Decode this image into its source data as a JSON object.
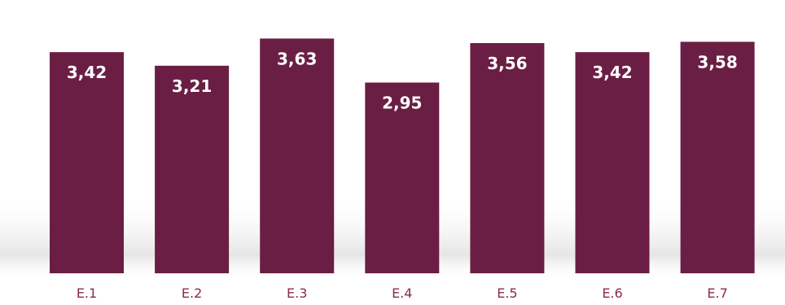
{
  "chart_data": {
    "type": "bar",
    "categories": [
      "E.1",
      "E.2",
      "E.3",
      "E.4",
      "E.5",
      "E.6",
      "E.7"
    ],
    "values": [
      3.42,
      3.21,
      3.63,
      2.95,
      3.56,
      3.42,
      3.58
    ],
    "value_labels": [
      "3,42",
      "3,21",
      "3,63",
      "2,95",
      "3,56",
      "3,42",
      "3,58"
    ],
    "title": "",
    "xlabel": "",
    "ylabel": "",
    "ylim": [
      0,
      4.0
    ],
    "grid": false,
    "legend": "none",
    "colors": {
      "bar": "#6b1e43",
      "tick_label": "#8a2a50",
      "data_label": "#ffffff",
      "floor_shadow": "#c8c8c8"
    }
  }
}
